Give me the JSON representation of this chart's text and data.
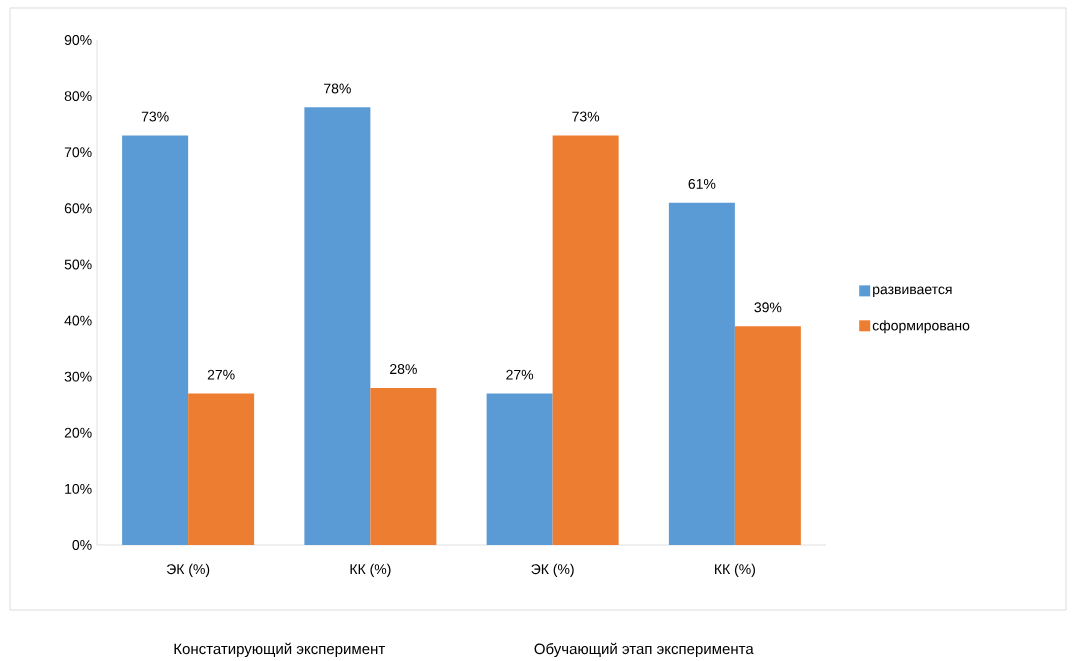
{
  "chart_data": {
    "type": "bar",
    "categories": [
      "ЭК (%)",
      "КК (%)",
      "ЭК (%)",
      "КК (%)"
    ],
    "series": [
      {
        "name": "развивается",
        "color": "#5b9bd5",
        "values": [
          73,
          78,
          27,
          61
        ],
        "value_labels": [
          "73%",
          "78%",
          "27%",
          "61%"
        ]
      },
      {
        "name": "сформировано",
        "color": "#ed7d31",
        "values": [
          27,
          28,
          73,
          39
        ],
        "value_labels": [
          "27%",
          "28%",
          "73%",
          "39%"
        ]
      }
    ],
    "ylim": [
      0,
      90
    ],
    "yticks": [
      {
        "value": 0,
        "label": "0%"
      },
      {
        "value": 10,
        "label": "10%"
      },
      {
        "value": 20,
        "label": "20%"
      },
      {
        "value": 30,
        "label": "30%"
      },
      {
        "value": 40,
        "label": "40%"
      },
      {
        "value": 50,
        "label": "50%"
      },
      {
        "value": 60,
        "label": "60%"
      },
      {
        "value": 70,
        "label": "70%"
      },
      {
        "value": 80,
        "label": "80%"
      },
      {
        "value": 90,
        "label": "90%"
      }
    ],
    "legend": "right",
    "annotations": [
      "Констатирующий эксперимент",
      "Обучающий этап эксперимента"
    ]
  }
}
